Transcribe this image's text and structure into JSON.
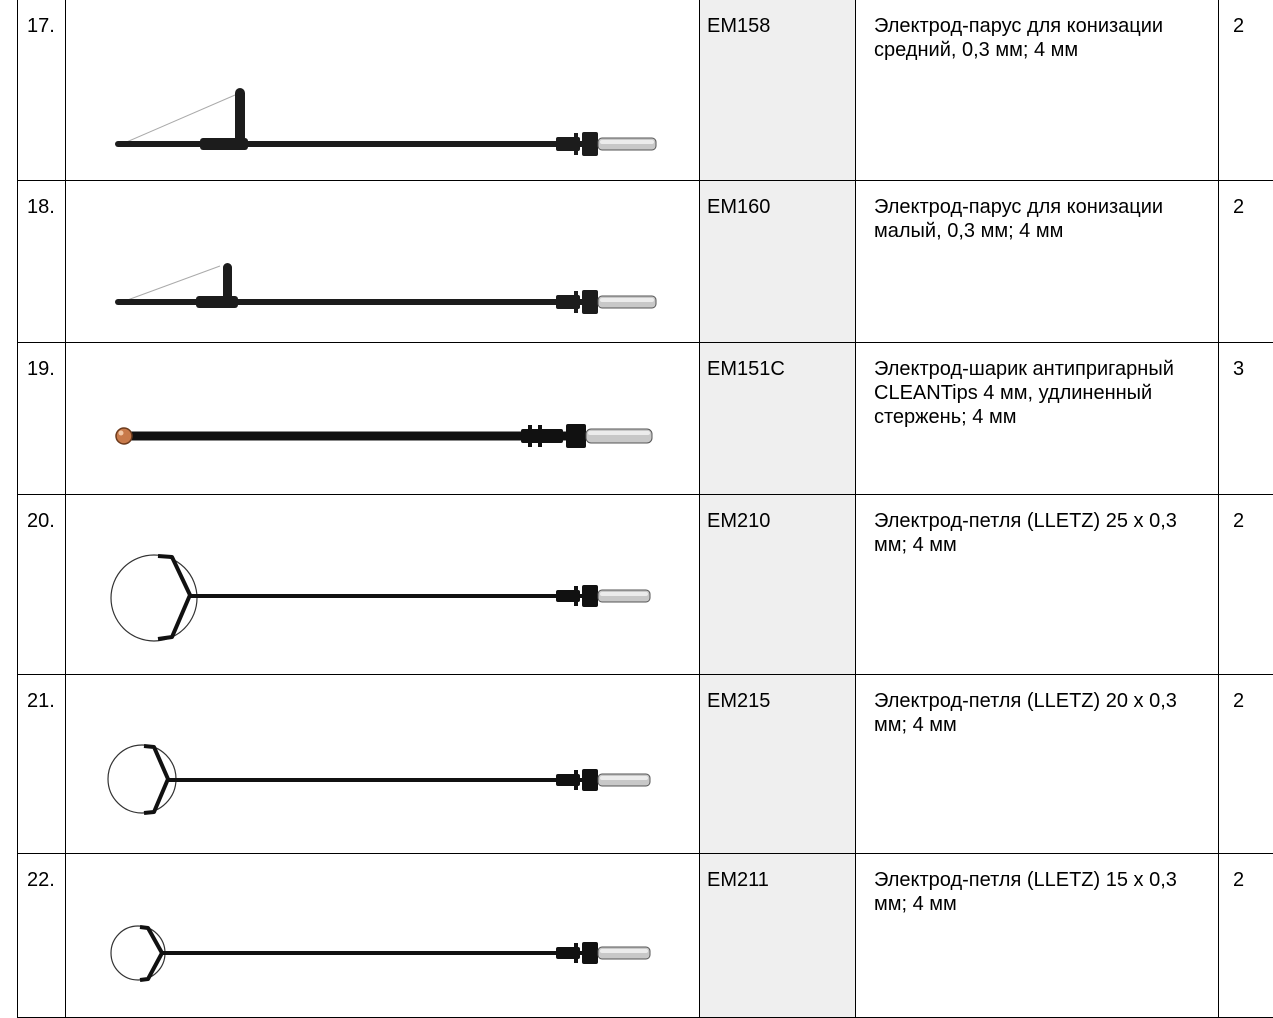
{
  "colors": {
    "code_column_bg": "#efefef",
    "border": "#000000"
  },
  "rows": [
    {
      "num": "17.",
      "code": "EM158",
      "desc": "Электрод-парус для конизации средний, 0,3 мм; 4 мм",
      "qty": "2",
      "icon": "sail-electrode-medium"
    },
    {
      "num": "18.",
      "code": "EM160",
      "desc": "Электрод-парус для конизации малый, 0,3 мм; 4 мм",
      "qty": "2",
      "icon": "sail-electrode-small"
    },
    {
      "num": "19.",
      "code": "EM151C",
      "desc": "Электрод-шарик антипригарный CLEANTips 4 мм, удлиненный стержень; 4 мм",
      "qty": "3",
      "icon": "ball-electrode"
    },
    {
      "num": "20.",
      "code": "EM210",
      "desc": "Электрод-петля (LLETZ) 25 х 0,3 мм; 4 мм",
      "qty": "2",
      "icon": "loop-electrode-25"
    },
    {
      "num": "21.",
      "code": "EM215",
      "desc": "Электрод-петля (LLETZ) 20 х 0,3 мм; 4 мм",
      "qty": "2",
      "icon": "loop-electrode-20"
    },
    {
      "num": "22.",
      "code": "EM211",
      "desc": "Электрод-петля (LLETZ) 15 х 0,3 мм; 4 мм",
      "qty": "2",
      "icon": "loop-electrode-15"
    }
  ]
}
